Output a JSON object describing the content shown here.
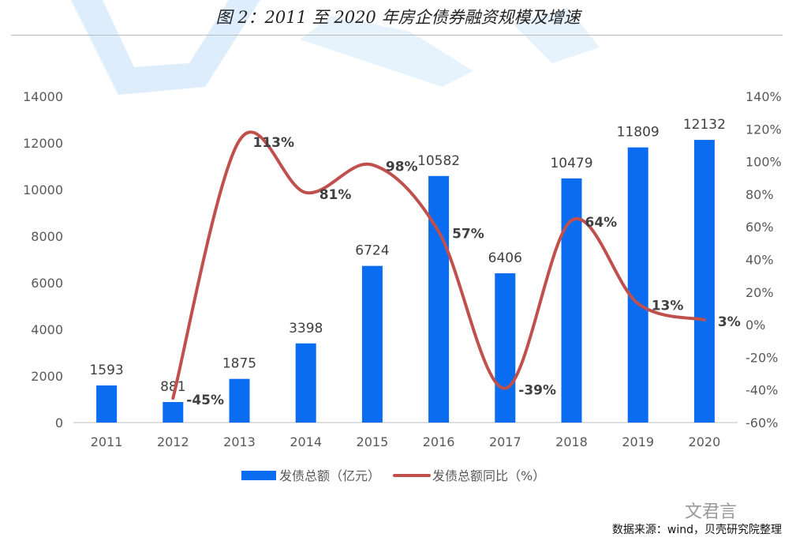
{
  "title": "图 2：2011 至 2020 年房企债券融资规模及增速",
  "source": "数据来源：wind，贝壳研究院整理",
  "watermark": "文君言",
  "chart_data": {
    "type": "bar",
    "title": "图 2：2011 至 2020 年房企债券融资规模及增速",
    "categories": [
      "2011",
      "2012",
      "2013",
      "2014",
      "2015",
      "2016",
      "2017",
      "2018",
      "2019",
      "2020"
    ],
    "series": [
      {
        "name": "发债总额（亿元）",
        "type": "bar",
        "axis": "left",
        "color": "#0a6cf0",
        "values": [
          1593,
          881,
          1875,
          3398,
          6724,
          10582,
          6406,
          10479,
          11809,
          12132
        ],
        "labels": [
          "1593",
          "881",
          "1875",
          "3398",
          "6724",
          "10582",
          "6406",
          "10479",
          "11809",
          "12132"
        ]
      },
      {
        "name": "发债总额同比（%）",
        "type": "line",
        "axis": "right",
        "color": "#c0504d",
        "values": [
          null,
          -45,
          113,
          81,
          98,
          57,
          -39,
          64,
          13,
          3
        ],
        "labels": [
          "",
          "-45%",
          "113%",
          "81%",
          "98%",
          "57%",
          "-39%",
          "64%",
          "13%",
          "3%"
        ]
      }
    ],
    "y_left": {
      "range": [
        0,
        14000
      ],
      "ticks": [
        "0",
        "2000",
        "4000",
        "6000",
        "8000",
        "10000",
        "12000",
        "14000"
      ]
    },
    "y_right": {
      "range": [
        -60,
        140
      ],
      "ticks": [
        "-60%",
        "-40%",
        "-20%",
        "0%",
        "20%",
        "40%",
        "60%",
        "80%",
        "100%",
        "120%",
        "140%"
      ]
    },
    "grid": false,
    "legend": "bottom"
  }
}
